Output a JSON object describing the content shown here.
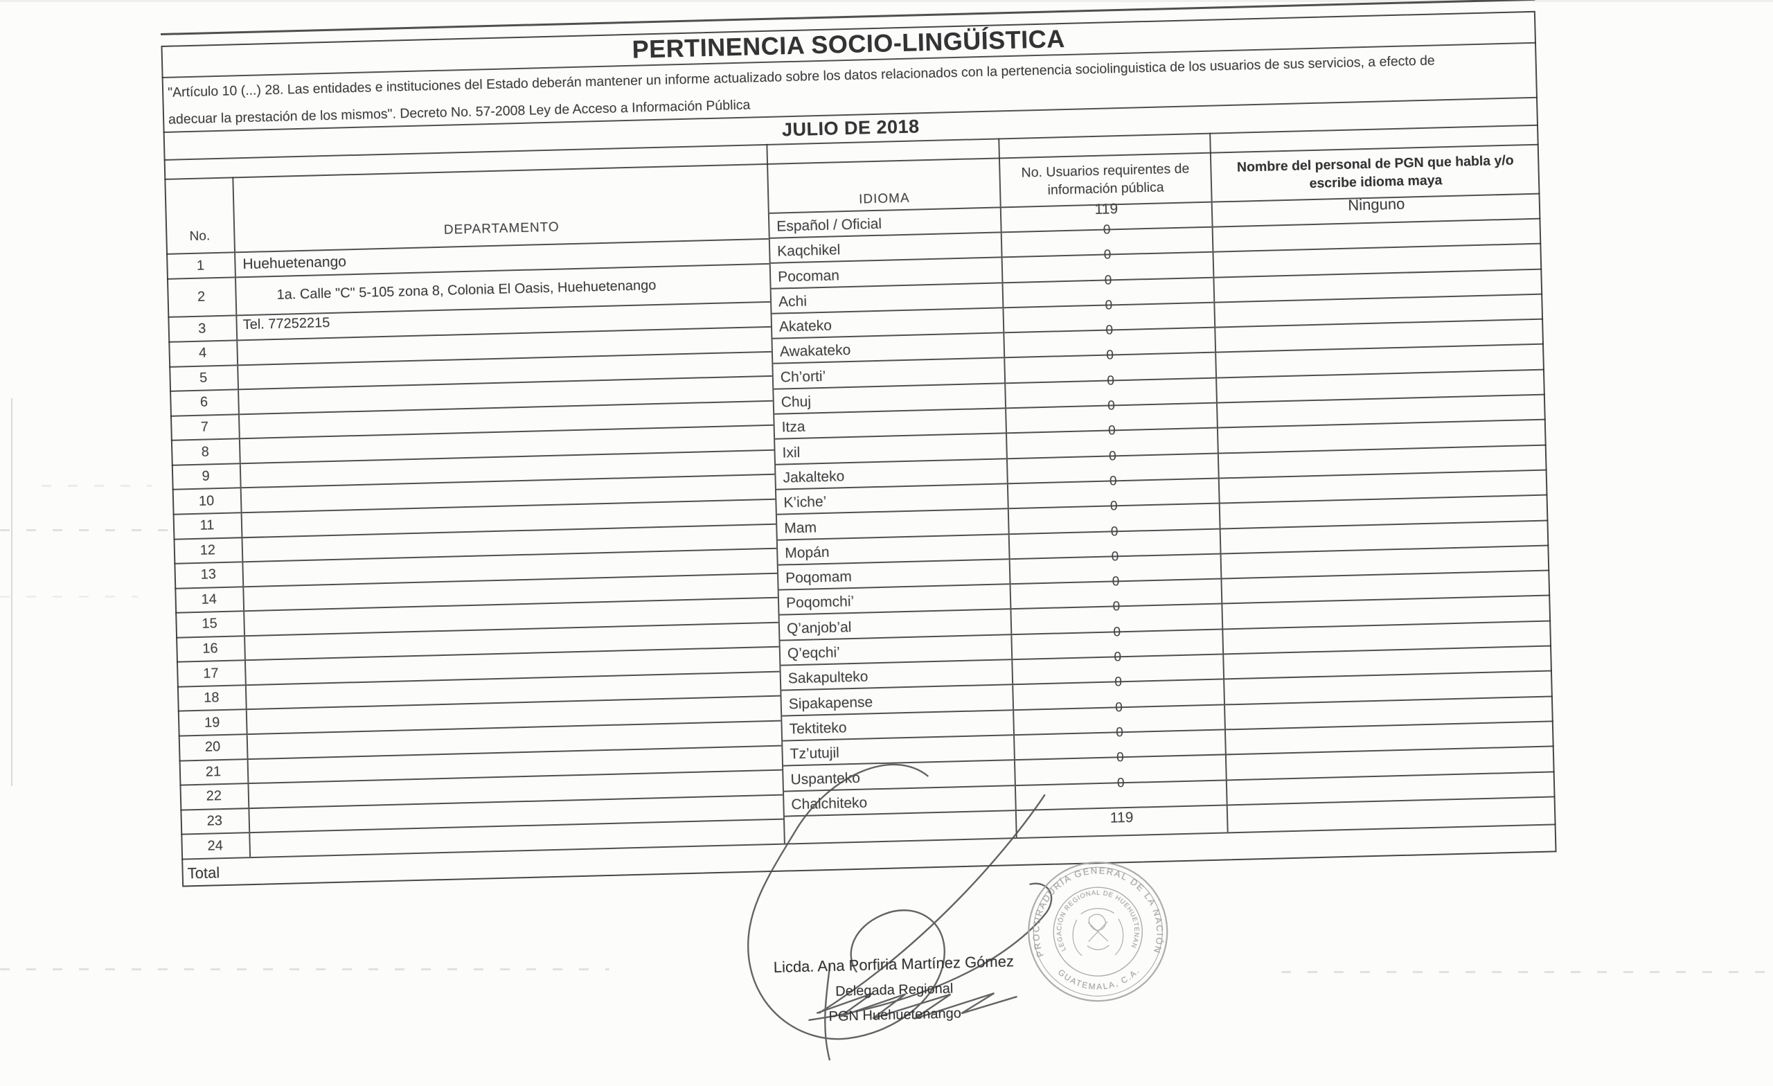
{
  "doc": {
    "title": "PERTINENCIA SOCIO-LINGÜÍSTICA",
    "legal_line1": "\"Artículo 10 (...) 28. Las entidades e instituciones del Estado deberán mantener un informe actualizado sobre los datos relacionados con la pertenencia sociolinguistica de los usuarios de sus servicios, a efecto de",
    "legal_line2": "adecuar la prestación de los mismos\".  Decreto No. 57-2008 Ley de Acceso a Información Pública",
    "period": "JULIO DE 2018",
    "columns": {
      "no": "No.",
      "departamento": "DEPARTAMENTO",
      "idioma": "IDIOMA",
      "usuarios_line1": "No. Usuarios requirentes de",
      "usuarios_line2": "información pública",
      "nombre_line1": "Nombre del personal de PGN que habla y/o",
      "nombre_line2": "escribe idioma maya"
    },
    "department": {
      "name": "Huehuetenango",
      "address": "1a. Calle  \"C\" 5-105 zona 8, Colonia El Oasis, Huehuetenango",
      "phone": "Tel. 77252215"
    },
    "official_row": {
      "idioma": "Español / Oficial",
      "usuarios": "119",
      "personal": "Ninguno"
    },
    "languages": [
      {
        "name": "Kaqchikel",
        "usuarios": "0"
      },
      {
        "name": "Pocoman",
        "usuarios": "0"
      },
      {
        "name": "Achi",
        "usuarios": "0"
      },
      {
        "name": "Akateko",
        "usuarios": "0"
      },
      {
        "name": "Awakateko",
        "usuarios": "0"
      },
      {
        "name": "Ch’orti’",
        "usuarios": "0"
      },
      {
        "name": "Chuj",
        "usuarios": "0"
      },
      {
        "name": "Itza",
        "usuarios": "0"
      },
      {
        "name": "Ixil",
        "usuarios": "0"
      },
      {
        "name": "Jakalteko",
        "usuarios": "0"
      },
      {
        "name": "K’iche’",
        "usuarios": "0"
      },
      {
        "name": "Mam",
        "usuarios": "0"
      },
      {
        "name": "Mopán",
        "usuarios": "0"
      },
      {
        "name": "Poqomam",
        "usuarios": "0"
      },
      {
        "name": "Poqomchi’",
        "usuarios": "0"
      },
      {
        "name": "Q’anjob’al",
        "usuarios": "0"
      },
      {
        "name": "Q’eqchi’",
        "usuarios": "0"
      },
      {
        "name": "Sakapulteko",
        "usuarios": "0"
      },
      {
        "name": "Sipakapense",
        "usuarios": "0"
      },
      {
        "name": "Tektiteko",
        "usuarios": "0"
      },
      {
        "name": "Tz’utujil",
        "usuarios": "0"
      },
      {
        "name": "Uspanteko",
        "usuarios": "0"
      },
      {
        "name": "Chalchiteko",
        "usuarios": "0"
      }
    ],
    "row_numbers": [
      "1",
      "2",
      "3",
      "4",
      "5",
      "6",
      "7",
      "8",
      "9",
      "10",
      "11",
      "12",
      "13",
      "14",
      "15",
      "16",
      "17",
      "18",
      "19",
      "20",
      "21",
      "22",
      "23",
      "24"
    ],
    "total_label": "Total",
    "total_usuarios": "119",
    "signature": {
      "name": "Licda. Ana Porfiria Martínez Gómez",
      "role": "Delegada  Regional",
      "office": "PGN Huehuetenango"
    },
    "stamp": {
      "ring_top": "PROCURADURÍA GENERAL DE LA NACIÓN",
      "ring_bottom": "GUATEMALA, C.A.",
      "inner_ring": "DELEGACIÓN REGIONAL DE HUEHUETENANGO"
    },
    "ink_color": "#3b3b3b",
    "stamp_color": "#a3a3a1"
  }
}
